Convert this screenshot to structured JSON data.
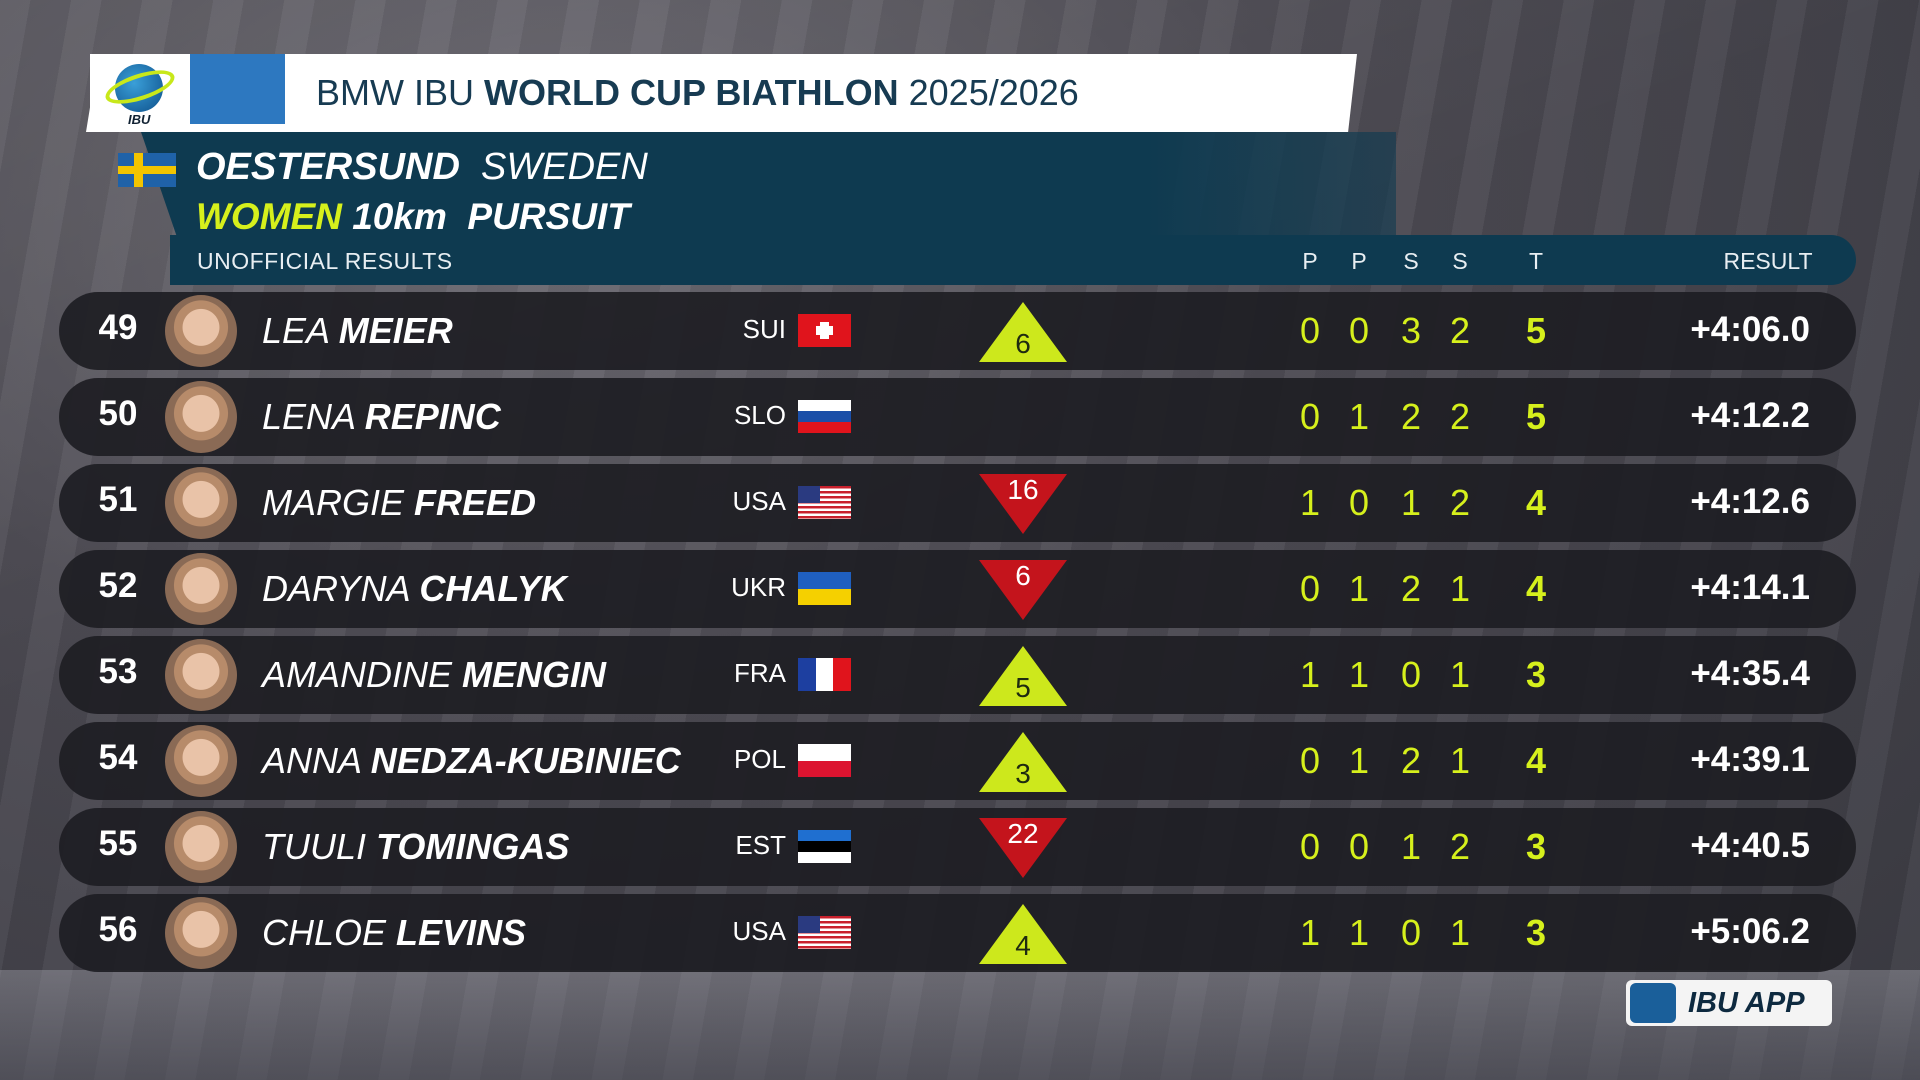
{
  "header": {
    "title_prefix": "BMW IBU ",
    "title_bold": "WORLD CUP BIATHLON",
    "title_suffix": " 2025/2026",
    "logo_text": "IBU"
  },
  "venue": {
    "city": "OESTERSUND",
    "country": "SWEDEN"
  },
  "race": {
    "gender": "WOMEN",
    "distance": "10km",
    "format": "PURSUIT"
  },
  "status": "UNOFFICIAL RESULTS",
  "columns": [
    "P",
    "P",
    "S",
    "S",
    "T",
    "RESULT"
  ],
  "colors": {
    "accent": "#d6f01c",
    "panel": "#0e3a50",
    "up": "#cde81c",
    "down": "#c4141c"
  },
  "rows": [
    {
      "rank": "49",
      "first": "LEA",
      "last": "MEIER",
      "nat": "SUI",
      "move": "up",
      "change": "6",
      "shoot": [
        "0",
        "0",
        "3",
        "2"
      ],
      "total": "5",
      "result": "+4:06.0"
    },
    {
      "rank": "50",
      "first": "LENA",
      "last": "REPINC",
      "nat": "SLO",
      "move": "none",
      "change": "",
      "shoot": [
        "0",
        "1",
        "2",
        "2"
      ],
      "total": "5",
      "result": "+4:12.2"
    },
    {
      "rank": "51",
      "first": "MARGIE",
      "last": "FREED",
      "nat": "USA",
      "move": "down",
      "change": "16",
      "shoot": [
        "1",
        "0",
        "1",
        "2"
      ],
      "total": "4",
      "result": "+4:12.6"
    },
    {
      "rank": "52",
      "first": "DARYNA",
      "last": "CHALYK",
      "nat": "UKR",
      "move": "down",
      "change": "6",
      "shoot": [
        "0",
        "1",
        "2",
        "1"
      ],
      "total": "4",
      "result": "+4:14.1"
    },
    {
      "rank": "53",
      "first": "AMANDINE",
      "last": "MENGIN",
      "nat": "FRA",
      "move": "up",
      "change": "5",
      "shoot": [
        "1",
        "1",
        "0",
        "1"
      ],
      "total": "3",
      "result": "+4:35.4"
    },
    {
      "rank": "54",
      "first": "ANNA",
      "last": "NEDZA-KUBINIEC",
      "nat": "POL",
      "move": "up",
      "change": "3",
      "shoot": [
        "0",
        "1",
        "2",
        "1"
      ],
      "total": "4",
      "result": "+4:39.1"
    },
    {
      "rank": "55",
      "first": "TUULI",
      "last": "TOMINGAS",
      "nat": "EST",
      "move": "down",
      "change": "22",
      "shoot": [
        "0",
        "0",
        "1",
        "2"
      ],
      "total": "3",
      "result": "+4:40.5"
    },
    {
      "rank": "56",
      "first": "CHLOE",
      "last": "LEVINS",
      "nat": "USA",
      "move": "up",
      "change": "4",
      "shoot": [
        "1",
        "1",
        "0",
        "1"
      ],
      "total": "3",
      "result": "+5:06.2"
    }
  ],
  "app_badge": "IBU APP"
}
